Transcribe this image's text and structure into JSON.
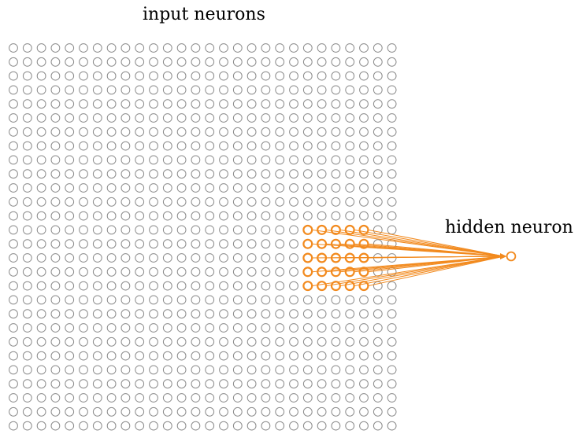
{
  "labels": {
    "input": "input neurons",
    "hidden": "hidden neuron"
  },
  "grid": {
    "rows": 28,
    "cols": 28
  },
  "receptive_field": {
    "start_row": 13,
    "start_col": 21,
    "size": 5
  },
  "colors": {
    "neuron": "#8c8c8c",
    "highlight": "#f28a1e",
    "text": "#000000",
    "background": "#ffffff"
  }
}
